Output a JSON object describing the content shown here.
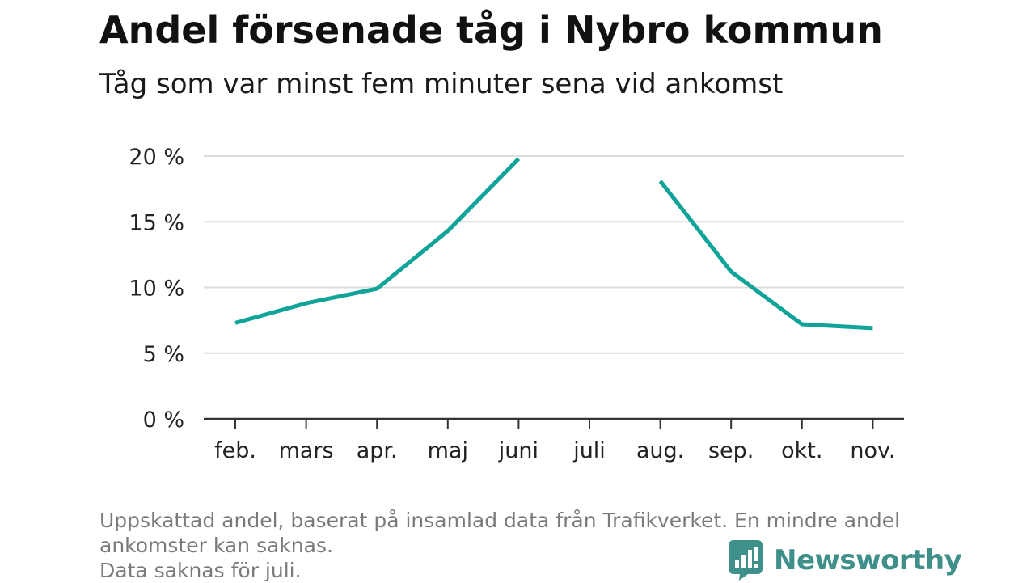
{
  "header": {
    "title": "Andel försenade tåg i Nybro kommun",
    "subtitle": "Tåg som var minst fem minuter sena vid ankomst"
  },
  "chart_data": {
    "type": "line",
    "categories": [
      "feb.",
      "mars",
      "apr.",
      "maj",
      "juni",
      "juli",
      "aug.",
      "sep.",
      "okt.",
      "nov."
    ],
    "series": [
      {
        "values": [
          7.3,
          8.8,
          9.9,
          14.3,
          19.8,
          null,
          18.1,
          11.2,
          7.2,
          6.9
        ]
      }
    ],
    "y_ticks": [
      {
        "value": 0,
        "label": "0 %"
      },
      {
        "value": 5,
        "label": "5 %"
      },
      {
        "value": 10,
        "label": "10 %"
      },
      {
        "value": 15,
        "label": "15 %"
      },
      {
        "value": 20,
        "label": "20 %"
      }
    ],
    "ylim": [
      0,
      20
    ],
    "grid": true,
    "colors": {
      "line": "#0fa39a",
      "grid": "#dcdcdc",
      "axis": "#333333"
    }
  },
  "footnote": {
    "line1": "Uppskattad andel, baserat på insamlad data från Trafikverket. En mindre andel",
    "line2": "ankomster kan saknas.",
    "line3": "Data saknas för juli."
  },
  "brand": {
    "name": "Newsworthy",
    "icon": "newsworthy-chart-logo-icon",
    "color": "#3f8f8a"
  }
}
